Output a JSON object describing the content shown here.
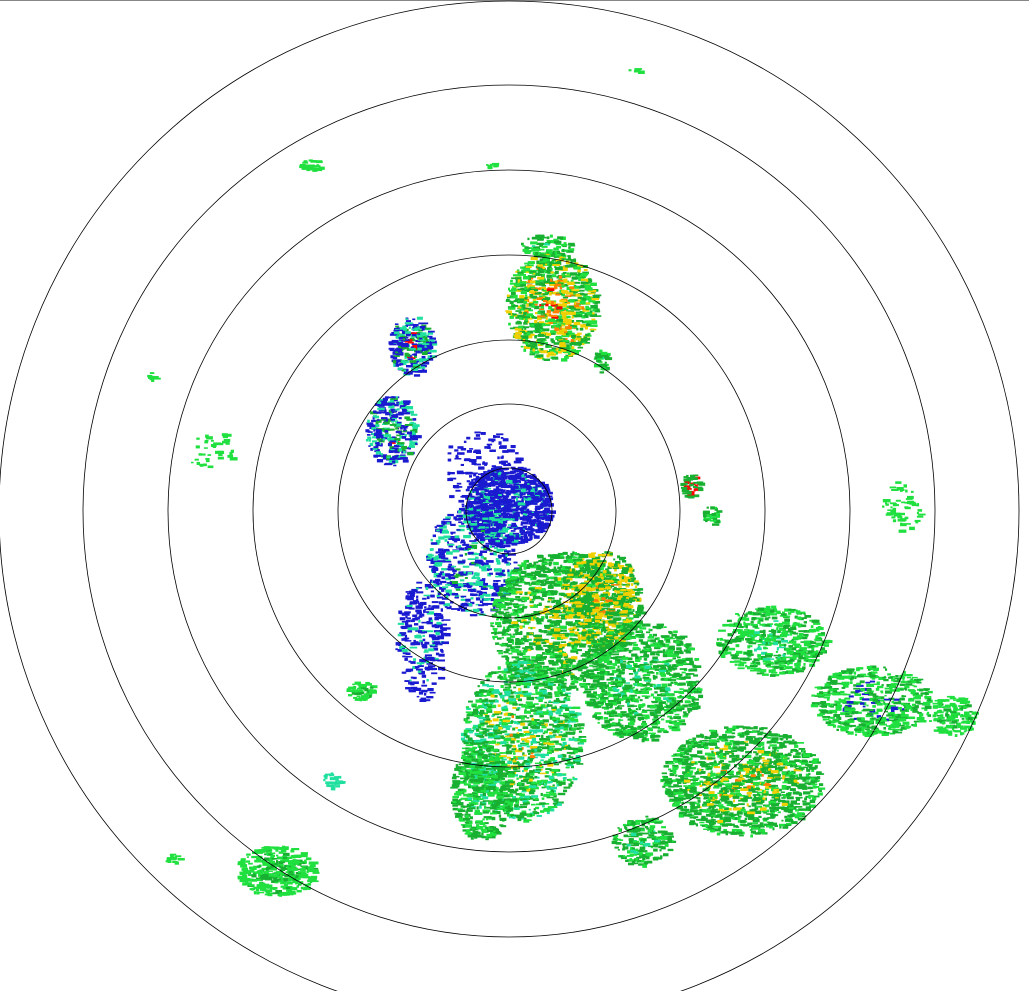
{
  "radar": {
    "palette": {
      "weak": "#1a1ad0",
      "light": "#20e0a0",
      "moderate": "#18b030",
      "bright": "#20e040",
      "heavy": "#f0d000",
      "intense": "#ff8000",
      "extreme": "#ff0000"
    },
    "ring_color": "#000000"
  }
}
